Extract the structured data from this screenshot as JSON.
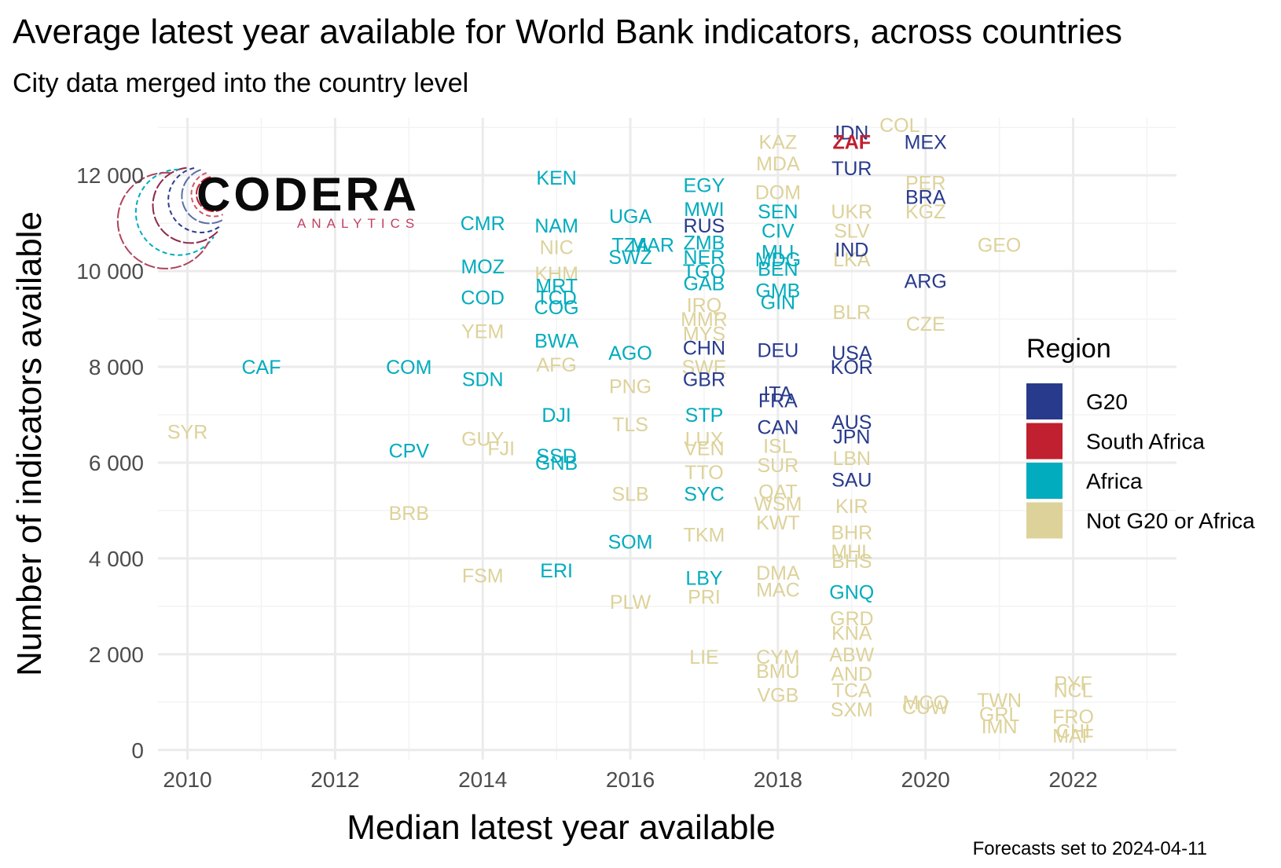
{
  "chart_data": {
    "type": "scatter",
    "title": "Average latest year available for World Bank indicators, across countries",
    "subtitle": "City data merged into the country level",
    "xlabel": "Median latest year available",
    "ylabel": "Number of indicators available",
    "caption": "Forecasts set to 2024-04-11",
    "xlim": [
      2009.6,
      2023.4
    ],
    "ylim": [
      -200,
      13200
    ],
    "x_ticks": [
      2010,
      2012,
      2014,
      2016,
      2018,
      2020,
      2022
    ],
    "y_ticks": [
      0,
      2000,
      4000,
      6000,
      8000,
      10000,
      12000
    ],
    "y_tick_labels": [
      "0",
      "2 000",
      "4 000",
      "6 000",
      "8 000",
      "10 000",
      "12 000"
    ],
    "grid": true,
    "legend": {
      "title": "Region",
      "placement": "right",
      "entries": [
        {
          "name": "G20",
          "color": "#283a8c"
        },
        {
          "name": "South Africa",
          "color": "#c0202f"
        },
        {
          "name": "Africa",
          "color": "#00acbd"
        },
        {
          "name": "Not G20 or Africa",
          "color": "#ddd29a"
        }
      ]
    },
    "logo": {
      "main": "CODERA",
      "sub": "ANALYTICS"
    },
    "points": [
      {
        "label": "SYR",
        "x": 2010,
        "y": 6650,
        "region": "Not G20 or Africa"
      },
      {
        "label": "CAF",
        "x": 2011,
        "y": 8000,
        "region": "Africa"
      },
      {
        "label": "COM",
        "x": 2013,
        "y": 8000,
        "region": "Africa"
      },
      {
        "label": "CPV",
        "x": 2013,
        "y": 6250,
        "region": "Africa"
      },
      {
        "label": "BRB",
        "x": 2013,
        "y": 4950,
        "region": "Not G20 or Africa"
      },
      {
        "label": "CMR",
        "x": 2014,
        "y": 11000,
        "region": "Africa"
      },
      {
        "label": "MOZ",
        "x": 2014,
        "y": 10100,
        "region": "Africa"
      },
      {
        "label": "COD",
        "x": 2014,
        "y": 9450,
        "region": "Africa"
      },
      {
        "label": "YEM",
        "x": 2014,
        "y": 8750,
        "region": "Not G20 or Africa"
      },
      {
        "label": "SDN",
        "x": 2014,
        "y": 7750,
        "region": "Africa"
      },
      {
        "label": "GUY",
        "x": 2014,
        "y": 6500,
        "region": "Not G20 or Africa"
      },
      {
        "label": "FJI",
        "x": 2014.25,
        "y": 6300,
        "region": "Not G20 or Africa"
      },
      {
        "label": "FSM",
        "x": 2014,
        "y": 3650,
        "region": "Not G20 or Africa"
      },
      {
        "label": "KEN",
        "x": 2015,
        "y": 11950,
        "region": "Africa"
      },
      {
        "label": "NAM",
        "x": 2015,
        "y": 10950,
        "region": "Africa"
      },
      {
        "label": "NIC",
        "x": 2015,
        "y": 10500,
        "region": "Not G20 or Africa"
      },
      {
        "label": "KHM",
        "x": 2015,
        "y": 9950,
        "region": "Not G20 or Africa"
      },
      {
        "label": "MRT",
        "x": 2015,
        "y": 9700,
        "region": "Africa"
      },
      {
        "label": "TCD",
        "x": 2015,
        "y": 9450,
        "region": "Africa"
      },
      {
        "label": "COG",
        "x": 2015,
        "y": 9250,
        "region": "Africa"
      },
      {
        "label": "BWA",
        "x": 2015,
        "y": 8550,
        "region": "Africa"
      },
      {
        "label": "AFG",
        "x": 2015,
        "y": 8050,
        "region": "Not G20 or Africa"
      },
      {
        "label": "DJI",
        "x": 2015,
        "y": 7000,
        "region": "Africa"
      },
      {
        "label": "SSD",
        "x": 2015,
        "y": 6150,
        "region": "Africa"
      },
      {
        "label": "GNB",
        "x": 2015,
        "y": 6000,
        "region": "Africa"
      },
      {
        "label": "ERI",
        "x": 2015,
        "y": 3750,
        "region": "Africa"
      },
      {
        "label": "UGA",
        "x": 2016,
        "y": 11150,
        "region": "Africa"
      },
      {
        "label": "TZA",
        "x": 2016,
        "y": 10550,
        "region": "Africa"
      },
      {
        "label": "MAR",
        "x": 2016.3,
        "y": 10550,
        "region": "Africa"
      },
      {
        "label": "SWZ",
        "x": 2016,
        "y": 10300,
        "region": "Africa"
      },
      {
        "label": "AGO",
        "x": 2016,
        "y": 8300,
        "region": "Africa"
      },
      {
        "label": "PNG",
        "x": 2016,
        "y": 7600,
        "region": "Not G20 or Africa"
      },
      {
        "label": "TLS",
        "x": 2016,
        "y": 6800,
        "region": "Not G20 or Africa"
      },
      {
        "label": "SLB",
        "x": 2016,
        "y": 5350,
        "region": "Not G20 or Africa"
      },
      {
        "label": "SOM",
        "x": 2016,
        "y": 4350,
        "region": "Africa"
      },
      {
        "label": "PLW",
        "x": 2016,
        "y": 3100,
        "region": "Not G20 or Africa"
      },
      {
        "label": "EGY",
        "x": 2017,
        "y": 11800,
        "region": "Africa"
      },
      {
        "label": "MWI",
        "x": 2017,
        "y": 11300,
        "region": "Africa"
      },
      {
        "label": "RUS",
        "x": 2017,
        "y": 10950,
        "region": "G20"
      },
      {
        "label": "ZMB",
        "x": 2017,
        "y": 10600,
        "region": "Africa"
      },
      {
        "label": "NER",
        "x": 2017,
        "y": 10300,
        "region": "Africa"
      },
      {
        "label": "TGO",
        "x": 2017,
        "y": 10000,
        "region": "Africa"
      },
      {
        "label": "GAB",
        "x": 2017,
        "y": 9750,
        "region": "Africa"
      },
      {
        "label": "IRQ",
        "x": 2017,
        "y": 9300,
        "region": "Not G20 or Africa"
      },
      {
        "label": "MMR",
        "x": 2017,
        "y": 9000,
        "region": "Not G20 or Africa"
      },
      {
        "label": "MYS",
        "x": 2017,
        "y": 8700,
        "region": "Not G20 or Africa"
      },
      {
        "label": "CHN",
        "x": 2017,
        "y": 8400,
        "region": "G20"
      },
      {
        "label": "SWE",
        "x": 2017,
        "y": 8000,
        "region": "Not G20 or Africa"
      },
      {
        "label": "GBR",
        "x": 2017,
        "y": 7750,
        "region": "G20"
      },
      {
        "label": "STP",
        "x": 2017,
        "y": 7000,
        "region": "Africa"
      },
      {
        "label": "LUX",
        "x": 2017,
        "y": 6500,
        "region": "Not G20 or Africa"
      },
      {
        "label": "VEN",
        "x": 2017,
        "y": 6300,
        "region": "Not G20 or Africa"
      },
      {
        "label": "TTO",
        "x": 2017,
        "y": 5800,
        "region": "Not G20 or Africa"
      },
      {
        "label": "SYC",
        "x": 2017,
        "y": 5350,
        "region": "Africa"
      },
      {
        "label": "TKM",
        "x": 2017,
        "y": 4500,
        "region": "Not G20 or Africa"
      },
      {
        "label": "LBY",
        "x": 2017,
        "y": 3600,
        "region": "Africa"
      },
      {
        "label": "PRI",
        "x": 2017,
        "y": 3200,
        "region": "Not G20 or Africa"
      },
      {
        "label": "LIE",
        "x": 2017,
        "y": 1950,
        "region": "Not G20 or Africa"
      },
      {
        "label": "KAZ",
        "x": 2018,
        "y": 12700,
        "region": "Not G20 or Africa"
      },
      {
        "label": "MDA",
        "x": 2018,
        "y": 12250,
        "region": "Not G20 or Africa"
      },
      {
        "label": "DOM",
        "x": 2018,
        "y": 11650,
        "region": "Not G20 or Africa"
      },
      {
        "label": "SEN",
        "x": 2018,
        "y": 11250,
        "region": "Africa"
      },
      {
        "label": "CIV",
        "x": 2018,
        "y": 10850,
        "region": "Africa"
      },
      {
        "label": "MLI",
        "x": 2018,
        "y": 10400,
        "region": "Africa"
      },
      {
        "label": "MDG",
        "x": 2018,
        "y": 10250,
        "region": "Africa"
      },
      {
        "label": "BEN",
        "x": 2018,
        "y": 10050,
        "region": "Africa"
      },
      {
        "label": "GMB",
        "x": 2018,
        "y": 9600,
        "region": "Africa"
      },
      {
        "label": "GIN",
        "x": 2018,
        "y": 9350,
        "region": "Africa"
      },
      {
        "label": "DEU",
        "x": 2018,
        "y": 8350,
        "region": "G20"
      },
      {
        "label": "ITA",
        "x": 2018,
        "y": 7450,
        "region": "G20"
      },
      {
        "label": "FRA",
        "x": 2018,
        "y": 7300,
        "region": "G20"
      },
      {
        "label": "CAN",
        "x": 2018,
        "y": 6750,
        "region": "G20"
      },
      {
        "label": "ISL",
        "x": 2018,
        "y": 6350,
        "region": "Not G20 or Africa"
      },
      {
        "label": "SUR",
        "x": 2018,
        "y": 5950,
        "region": "Not G20 or Africa"
      },
      {
        "label": "QAT",
        "x": 2018,
        "y": 5400,
        "region": "Not G20 or Africa"
      },
      {
        "label": "WSM",
        "x": 2018,
        "y": 5150,
        "region": "Not G20 or Africa"
      },
      {
        "label": "KWT",
        "x": 2018,
        "y": 4750,
        "region": "Not G20 or Africa"
      },
      {
        "label": "DMA",
        "x": 2018,
        "y": 3700,
        "region": "Not G20 or Africa"
      },
      {
        "label": "MAC",
        "x": 2018,
        "y": 3350,
        "region": "Not G20 or Africa"
      },
      {
        "label": "CYM",
        "x": 2018,
        "y": 1950,
        "region": "Not G20 or Africa"
      },
      {
        "label": "BMU",
        "x": 2018,
        "y": 1650,
        "region": "Not G20 or Africa"
      },
      {
        "label": "VGB",
        "x": 2018,
        "y": 1150,
        "region": "Not G20 or Africa"
      },
      {
        "label": "IDN",
        "x": 2019,
        "y": 12900,
        "region": "G20"
      },
      {
        "label": "ZAF",
        "x": 2019,
        "y": 12700,
        "region": "South Africa"
      },
      {
        "label": "TUR",
        "x": 2019,
        "y": 12150,
        "region": "G20"
      },
      {
        "label": "UKR",
        "x": 2019,
        "y": 11250,
        "region": "Not G20 or Africa"
      },
      {
        "label": "SLV",
        "x": 2019,
        "y": 10850,
        "region": "Not G20 or Africa"
      },
      {
        "label": "IND",
        "x": 2019,
        "y": 10450,
        "region": "G20"
      },
      {
        "label": "LKA",
        "x": 2019,
        "y": 10250,
        "region": "Not G20 or Africa"
      },
      {
        "label": "BLR",
        "x": 2019,
        "y": 9150,
        "region": "Not G20 or Africa"
      },
      {
        "label": "USA",
        "x": 2019,
        "y": 8300,
        "region": "G20"
      },
      {
        "label": "KOR",
        "x": 2019,
        "y": 8000,
        "region": "G20"
      },
      {
        "label": "AUS",
        "x": 2019,
        "y": 6850,
        "region": "G20"
      },
      {
        "label": "JPN",
        "x": 2019,
        "y": 6550,
        "region": "G20"
      },
      {
        "label": "LBN",
        "x": 2019,
        "y": 6100,
        "region": "Not G20 or Africa"
      },
      {
        "label": "SAU",
        "x": 2019,
        "y": 5650,
        "region": "G20"
      },
      {
        "label": "KIR",
        "x": 2019,
        "y": 5100,
        "region": "Not G20 or Africa"
      },
      {
        "label": "BHR",
        "x": 2019,
        "y": 4550,
        "region": "Not G20 or Africa"
      },
      {
        "label": "MHL",
        "x": 2019,
        "y": 4150,
        "region": "Not G20 or Africa"
      },
      {
        "label": "BHS",
        "x": 2019,
        "y": 3950,
        "region": "Not G20 or Africa"
      },
      {
        "label": "GNQ",
        "x": 2019,
        "y": 3300,
        "region": "Africa"
      },
      {
        "label": "GRD",
        "x": 2019,
        "y": 2750,
        "region": "Not G20 or Africa"
      },
      {
        "label": "KNA",
        "x": 2019,
        "y": 2450,
        "region": "Not G20 or Africa"
      },
      {
        "label": "ABW",
        "x": 2019,
        "y": 2000,
        "region": "Not G20 or Africa"
      },
      {
        "label": "AND",
        "x": 2019,
        "y": 1600,
        "region": "Not G20 or Africa"
      },
      {
        "label": "TCA",
        "x": 2019,
        "y": 1250,
        "region": "Not G20 or Africa"
      },
      {
        "label": "SXM",
        "x": 2019,
        "y": 850,
        "region": "Not G20 or Africa"
      },
      {
        "label": "COL",
        "x": 2019.65,
        "y": 13050,
        "region": "Not G20 or Africa"
      },
      {
        "label": "MEX",
        "x": 2020,
        "y": 12700,
        "region": "G20"
      },
      {
        "label": "PER",
        "x": 2020,
        "y": 11850,
        "region": "Not G20 or Africa"
      },
      {
        "label": "BRA",
        "x": 2020,
        "y": 11550,
        "region": "G20"
      },
      {
        "label": "KGZ",
        "x": 2020,
        "y": 11250,
        "region": "Not G20 or Africa"
      },
      {
        "label": "ARG",
        "x": 2020,
        "y": 9800,
        "region": "G20"
      },
      {
        "label": "CZE",
        "x": 2020,
        "y": 8900,
        "region": "Not G20 or Africa"
      },
      {
        "label": "MCO",
        "x": 2020,
        "y": 1000,
        "region": "Not G20 or Africa"
      },
      {
        "label": "CUW",
        "x": 2020,
        "y": 900,
        "region": "Not G20 or Africa"
      },
      {
        "label": "GEO",
        "x": 2021,
        "y": 10550,
        "region": "Not G20 or Africa"
      },
      {
        "label": "TWN",
        "x": 2021,
        "y": 1050,
        "region": "Not G20 or Africa"
      },
      {
        "label": "GRL",
        "x": 2021,
        "y": 750,
        "region": "Not G20 or Africa"
      },
      {
        "label": "IMN",
        "x": 2021,
        "y": 500,
        "region": "Not G20 or Africa"
      },
      {
        "label": "PYF",
        "x": 2022,
        "y": 1400,
        "region": "Not G20 or Africa"
      },
      {
        "label": "NCL",
        "x": 2022,
        "y": 1250,
        "region": "Not G20 or Africa"
      },
      {
        "label": "FRO",
        "x": 2022,
        "y": 700,
        "region": "Not G20 or Africa"
      },
      {
        "label": "CHI",
        "x": 2022,
        "y": 400,
        "region": "Not G20 or Africa"
      },
      {
        "label": "MAF",
        "x": 2022,
        "y": 300,
        "region": "Not G20 or Africa"
      }
    ]
  }
}
